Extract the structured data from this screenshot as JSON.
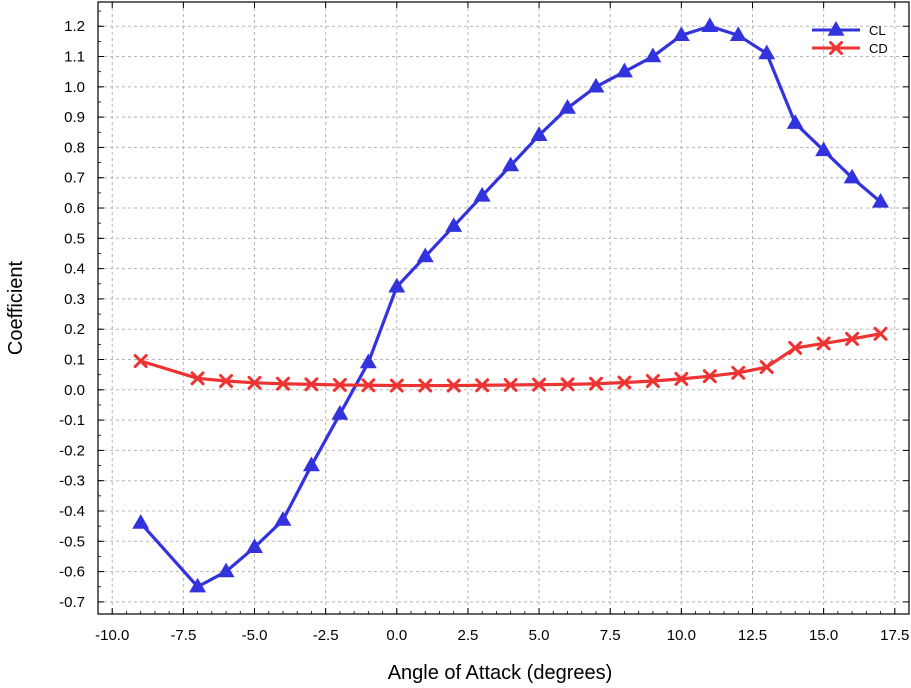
{
  "chart_data": {
    "type": "line",
    "title": "",
    "xlabel": "Angle of Attack (degrees)",
    "ylabel": "Coefficient",
    "xlim": [
      -10.5,
      18.0
    ],
    "ylim": [
      -0.74,
      1.28
    ],
    "xticks": [
      -10.0,
      -7.5,
      -5.0,
      -2.5,
      0.0,
      2.5,
      5.0,
      7.5,
      10.0,
      12.5,
      15.0,
      17.5
    ],
    "xtick_labels": [
      "-10.0",
      "-7.5",
      "-5.0",
      "-2.5",
      "0.0",
      "2.5",
      "5.0",
      "7.5",
      "10.0",
      "12.5",
      "15.0",
      "17.5"
    ],
    "yticks": [
      -0.7,
      -0.6,
      -0.5,
      -0.4,
      -0.3,
      -0.2,
      -0.1,
      0.0,
      0.1,
      0.2,
      0.3,
      0.4,
      0.5,
      0.6,
      0.7,
      0.8,
      0.9,
      1.0,
      1.1,
      1.2
    ],
    "ytick_labels": [
      "-0.7",
      "-0.6",
      "-0.5",
      "-0.4",
      "-0.3",
      "-0.2",
      "-0.1",
      "0.0",
      "0.1",
      "0.2",
      "0.3",
      "0.4",
      "0.5",
      "0.6",
      "0.7",
      "0.8",
      "0.9",
      "1.0",
      "1.1",
      "1.2"
    ],
    "grid": true,
    "legend_position": "top-right",
    "series": [
      {
        "name": "CL",
        "color": "#3333dd",
        "marker": "triangle",
        "x": [
          -9,
          -7,
          -6,
          -5,
          -4,
          -3,
          -2,
          -1,
          0,
          1,
          2,
          3,
          4,
          5,
          6,
          7,
          8,
          9,
          10,
          11,
          12,
          13,
          14,
          15,
          16,
          17
        ],
        "y": [
          -0.44,
          -0.65,
          -0.6,
          -0.52,
          -0.43,
          -0.25,
          -0.08,
          0.09,
          0.34,
          0.44,
          0.54,
          0.64,
          0.74,
          0.84,
          0.93,
          1.0,
          1.05,
          1.1,
          1.17,
          1.2,
          1.17,
          1.11,
          0.88,
          0.79,
          0.7,
          0.62
        ]
      },
      {
        "name": "CD",
        "color": "#ee3333",
        "marker": "x",
        "x": [
          -9,
          -7,
          -6,
          -5,
          -4,
          -3,
          -2,
          -1,
          0,
          1,
          2,
          3,
          4,
          5,
          6,
          7,
          8,
          9,
          10,
          11,
          12,
          13,
          14,
          15,
          16,
          17
        ],
        "y": [
          0.095,
          0.038,
          0.029,
          0.023,
          0.02,
          0.018,
          0.016,
          0.015,
          0.014,
          0.014,
          0.014,
          0.015,
          0.016,
          0.017,
          0.018,
          0.02,
          0.024,
          0.029,
          0.036,
          0.045,
          0.056,
          0.075,
          0.138,
          0.153,
          0.168,
          0.185
        ]
      }
    ]
  }
}
